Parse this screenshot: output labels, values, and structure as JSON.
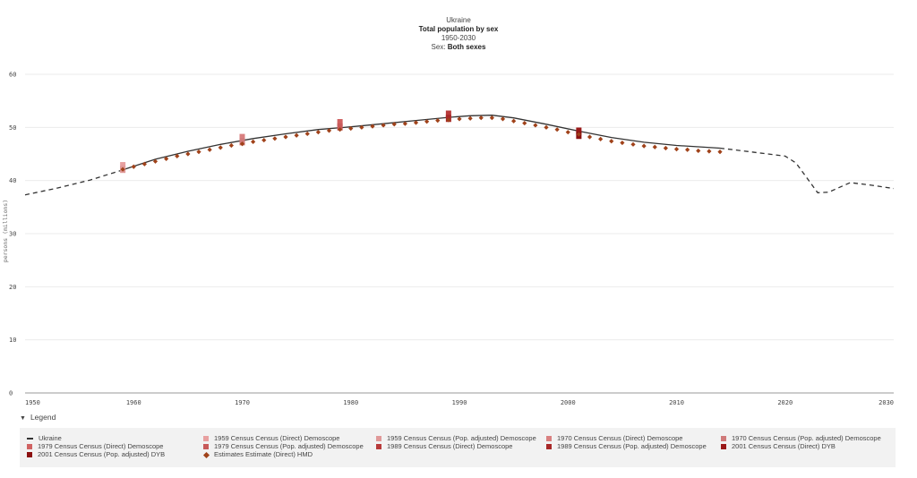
{
  "header": {
    "line1": "Ukraine",
    "line2": "Total population by sex",
    "line3": "1950-2030",
    "line4_prefix": "Sex: ",
    "line4_value": "Both sexes"
  },
  "legend_toggle": {
    "caret": "▼",
    "label": "Legend"
  },
  "legend": [
    {
      "label": "Ukraine",
      "kind": "line",
      "color": "#333333"
    },
    {
      "label": "1959 Census Census (Direct) Demoscope",
      "kind": "rect",
      "color": "#e8a0a0"
    },
    {
      "label": "1959 Census Census (Pop. adjusted) Demoscope",
      "kind": "rect",
      "color": "#e09999"
    },
    {
      "label": "1970 Census Census (Direct) Demoscope",
      "kind": "rect",
      "color": "#d98080"
    },
    {
      "label": "1970 Census Census (Pop. adjusted) Demoscope",
      "kind": "rect",
      "color": "#d07a7a"
    },
    {
      "label": "1979 Census Census (Direct) Demoscope",
      "kind": "rect",
      "color": "#d06262"
    },
    {
      "label": "1979 Census Census (Pop. adjusted) Demoscope",
      "kind": "rect",
      "color": "#c85a5a"
    },
    {
      "label": "1989 Census Census (Direct) Demoscope",
      "kind": "rect",
      "color": "#b83a3a"
    },
    {
      "label": "1989 Census Census (Pop. adjusted) Demoscope",
      "kind": "rect",
      "color": "#a82828"
    },
    {
      "label": "2001 Census Census (Direct) DYB",
      "kind": "rect",
      "color": "#9a1818"
    },
    {
      "label": "2001 Census Census (Pop. adjusted) DYB",
      "kind": "rect",
      "color": "#8b1010"
    },
    {
      "label": "Estimates Estimate (Direct) HMD",
      "kind": "diamond",
      "color": "#a0421a"
    }
  ],
  "chart_data": {
    "type": "line",
    "title": "Ukraine",
    "subtitle": [
      "Total population by sex",
      "1950-2030",
      "Sex: Both sexes"
    ],
    "xlabel": "",
    "ylabel": "persons (millions)",
    "xlim": [
      1950,
      2030
    ],
    "ylim": [
      0,
      60
    ],
    "xticks": [
      1950,
      1960,
      1970,
      1980,
      1990,
      2000,
      2010,
      2020,
      2030
    ],
    "yticks": [
      0,
      10,
      20,
      30,
      40,
      50,
      60
    ],
    "grid": true,
    "legend_placement": "bottom",
    "series": [
      {
        "name": "Ukraine",
        "style": "dashed",
        "color": "#333333",
        "x": [
          1950,
          1953,
          1956,
          1959
        ],
        "y": [
          37.3,
          38.6,
          40.1,
          42.0
        ]
      },
      {
        "name": "Ukraine",
        "style": "solid",
        "color": "#333333",
        "x": [
          1959,
          1962,
          1965,
          1968,
          1971,
          1974,
          1977,
          1980,
          1983,
          1986,
          1989,
          1991,
          1993,
          1995,
          1998,
          2001,
          2004,
          2007,
          2010,
          2014
        ],
        "y": [
          42.0,
          44.0,
          45.5,
          46.8,
          47.9,
          48.8,
          49.6,
          50.1,
          50.7,
          51.3,
          51.9,
          52.2,
          52.3,
          51.8,
          50.6,
          49.3,
          48.1,
          47.2,
          46.6,
          46.1
        ]
      },
      {
        "name": "Ukraine",
        "style": "dashed",
        "color": "#333333",
        "x": [
          2014,
          2016,
          2018,
          2020,
          2021,
          2023,
          2024,
          2026,
          2028,
          2030
        ],
        "y": [
          46.1,
          45.6,
          45.1,
          44.6,
          43.3,
          37.7,
          37.8,
          39.6,
          39.1,
          38.5
        ]
      },
      {
        "name": "Estimates Estimate (Direct) HMD",
        "marker": "diamond",
        "color": "#a0421a",
        "x": [
          1959,
          1960,
          1961,
          1962,
          1963,
          1964,
          1965,
          1966,
          1967,
          1968,
          1969,
          1970,
          1971,
          1972,
          1973,
          1974,
          1975,
          1976,
          1977,
          1978,
          1979,
          1980,
          1981,
          1982,
          1983,
          1984,
          1985,
          1986,
          1987,
          1988,
          1989,
          1990,
          1991,
          1992,
          1993,
          1994,
          1995,
          1996,
          1997,
          1998,
          1999,
          2000,
          2001,
          2002,
          2003,
          2004,
          2005,
          2006,
          2007,
          2008,
          2009,
          2010,
          2011,
          2012,
          2013,
          2014
        ],
        "y": [
          42.1,
          42.6,
          43.1,
          43.6,
          44.1,
          44.6,
          45.0,
          45.4,
          45.8,
          46.2,
          46.6,
          46.9,
          47.3,
          47.6,
          47.9,
          48.2,
          48.5,
          48.8,
          49.1,
          49.4,
          49.6,
          49.8,
          50.0,
          50.2,
          50.4,
          50.6,
          50.7,
          50.9,
          51.1,
          51.3,
          51.4,
          51.6,
          51.7,
          51.8,
          51.8,
          51.6,
          51.2,
          50.8,
          50.4,
          50.0,
          49.6,
          49.1,
          48.7,
          48.2,
          47.8,
          47.4,
          47.1,
          46.8,
          46.5,
          46.3,
          46.1,
          45.9,
          45.8,
          45.6,
          45.5,
          45.4
        ]
      }
    ],
    "census_points": [
      {
        "name": "1959 Census Census (Direct) Demoscope",
        "x": 1959,
        "y": 42.8,
        "color": "#e8a0a0"
      },
      {
        "name": "1959 Census Census (Pop. adjusted) Demoscope",
        "x": 1959,
        "y": 42.1,
        "color": "#e09999"
      },
      {
        "name": "1970 Census Census (Direct) Demoscope",
        "x": 1970,
        "y": 48.1,
        "color": "#d98080"
      },
      {
        "name": "1970 Census Census (Pop. adjusted) Demoscope",
        "x": 1970,
        "y": 47.3,
        "color": "#d07a7a"
      },
      {
        "name": "1979 Census Census (Direct) Demoscope",
        "x": 1979,
        "y": 50.9,
        "color": "#d06262"
      },
      {
        "name": "1979 Census Census (Pop. adjusted) Demoscope",
        "x": 1979,
        "y": 50.1,
        "color": "#c85a5a"
      },
      {
        "name": "1989 Census Census (Direct) Demoscope",
        "x": 1989,
        "y": 52.5,
        "color": "#b83a3a"
      },
      {
        "name": "1989 Census Census (Pop. adjusted) Demoscope",
        "x": 1989,
        "y": 51.7,
        "color": "#a82828"
      },
      {
        "name": "2001 Census Census (Direct) DYB",
        "x": 2001,
        "y": 49.3,
        "color": "#9a1818"
      },
      {
        "name": "2001 Census Census (Pop. adjusted) DYB",
        "x": 2001,
        "y": 48.5,
        "color": "#8b1010"
      }
    ]
  }
}
